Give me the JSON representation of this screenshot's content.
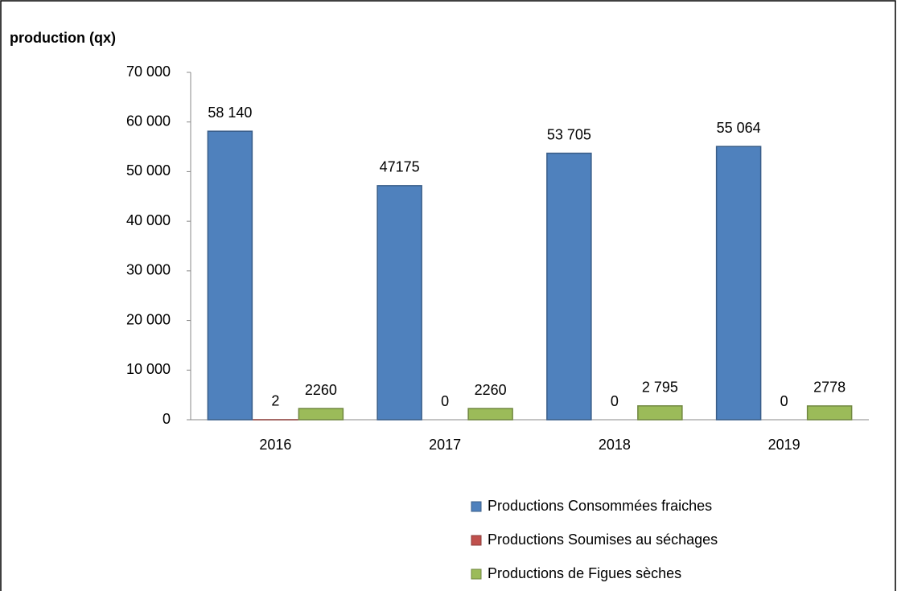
{
  "chart_data": {
    "type": "bar",
    "y_label": "production (qx)",
    "categories": [
      "2016",
      "2017",
      "2018",
      "2019"
    ],
    "series": [
      {
        "name": "Productions Consommées fraiches",
        "color": "#4f81bd",
        "values": [
          58140,
          47175,
          53705,
          55064
        ],
        "value_labels": [
          "58 140",
          "47175",
          "53 705",
          "55 064"
        ]
      },
      {
        "name": "Productions Soumises au séchages",
        "color": "#c0504d",
        "values": [
          2,
          0,
          0,
          0
        ]
      },
      {
        "name": "Productions de Figues sèches",
        "color": "#9bbb59",
        "values": [
          2260,
          2260,
          2795,
          2778
        ],
        "value_labels": [
          "2260",
          "2260",
          "2 795",
          "2778"
        ]
      }
    ],
    "ylim": [
      0,
      70000
    ],
    "yticks": [
      0,
      {
        "value": 10000,
        "label": "10 000"
      },
      {
        "value": 20000,
        "label": "20 000"
      },
      {
        "value": 30000,
        "label": "30 000"
      },
      {
        "value": 40000,
        "label": "40 000"
      },
      {
        "value": 50000,
        "label": "50 000"
      },
      {
        "value": 60000,
        "label": "60 000"
      },
      {
        "value": 70000,
        "label": "70 000"
      }
    ],
    "grid": false,
    "legend": "bottom"
  }
}
